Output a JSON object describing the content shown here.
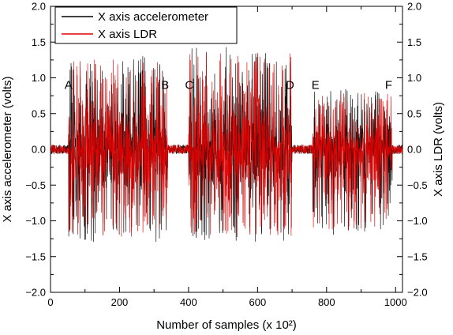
{
  "chart_data": {
    "type": "line",
    "xlabel": "Number of samples (x 10²)",
    "ylabel_left": "X axis accelerometer (volts)",
    "ylabel_right": "X axis LDR (volts)",
    "xlim": [
      0,
      1020
    ],
    "ylim": [
      -2.0,
      2.0
    ],
    "x_ticks": [
      0,
      200,
      400,
      600,
      800,
      1000
    ],
    "x_tick_labels": [
      "0",
      "200",
      "400",
      "600",
      "800",
      "1000"
    ],
    "y_ticks": [
      -2.0,
      -1.5,
      -1.0,
      -0.5,
      0.0,
      0.5,
      1.0,
      1.5,
      2.0
    ],
    "y_tick_labels": [
      "−2.0",
      "−1.5",
      "−1.0",
      "−0.5",
      "0.0",
      "0.5",
      "1.0",
      "1.5",
      "2.0"
    ],
    "grid": false,
    "legend_position": "top-left",
    "series": [
      {
        "name": "X axis accelerometer",
        "color": "#000000"
      },
      {
        "name": "X axis LDR",
        "color": "#e00000"
      }
    ],
    "segments": [
      {
        "start": 52,
        "end": 340,
        "amplitude_min": -1.3,
        "amplitude_max": 1.33
      },
      {
        "start": 400,
        "end": 700,
        "amplitude_min": -1.3,
        "amplitude_max": 1.43
      },
      {
        "start": 760,
        "end": 990,
        "amplitude_min": -1.2,
        "amplitude_max": 0.85
      }
    ],
    "annotations": [
      {
        "text": "A",
        "x": 52,
        "y": 0.9
      },
      {
        "text": "B",
        "x": 332,
        "y": 0.9
      },
      {
        "text": "C",
        "x": 402,
        "y": 0.9
      },
      {
        "text": "D",
        "x": 694,
        "y": 0.9
      },
      {
        "text": "E",
        "x": 768,
        "y": 0.9
      },
      {
        "text": "F",
        "x": 980,
        "y": 0.9
      }
    ]
  }
}
